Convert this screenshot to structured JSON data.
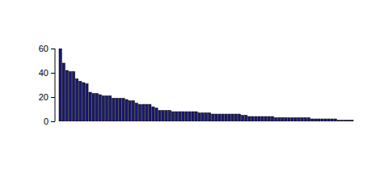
{
  "chart_data": {
    "type": "bar",
    "categories": [
      null,
      null,
      null,
      null,
      null,
      null,
      null,
      null,
      null,
      null,
      null,
      null,
      null,
      null,
      null,
      null,
      null,
      null,
      null,
      null,
      null,
      null,
      null,
      null,
      null,
      null,
      null,
      null,
      null,
      null,
      null,
      null,
      null,
      null,
      null,
      null,
      null,
      null,
      null,
      null,
      null,
      null,
      null,
      null,
      null,
      null,
      null,
      null,
      null,
      null,
      null,
      null,
      null,
      null,
      null,
      null,
      null,
      null,
      null,
      null,
      null,
      null,
      null,
      null,
      null,
      null,
      null,
      null,
      null,
      null,
      null,
      null,
      null,
      null,
      null,
      null,
      null,
      null,
      null,
      null,
      null,
      null,
      null,
      null,
      null,
      null,
      null,
      null,
      null
    ],
    "values": [
      60,
      48,
      42,
      41,
      41,
      35,
      33,
      32,
      31,
      24,
      23,
      23,
      22,
      21,
      21,
      21,
      19,
      19,
      19,
      19,
      18,
      17,
      17,
      15,
      14,
      14,
      14,
      14,
      12,
      11,
      9,
      9,
      9,
      9,
      8,
      8,
      8,
      8,
      8,
      8,
      8,
      8,
      7,
      7,
      7,
      7,
      6,
      6,
      6,
      6,
      6,
      6,
      6,
      6,
      6,
      5,
      5,
      4,
      4,
      4,
      4,
      4,
      4,
      4,
      4,
      3,
      3,
      3,
      3,
      3,
      3,
      3,
      3,
      3,
      3,
      3,
      2,
      2,
      2,
      2,
      2,
      2,
      2,
      2,
      1,
      1,
      1,
      1,
      1
    ],
    "color": "#191970",
    "ylim": [
      0,
      60
    ],
    "yticks": [
      0,
      20,
      40,
      60
    ],
    "grid": false,
    "tick_labels": "y"
  }
}
